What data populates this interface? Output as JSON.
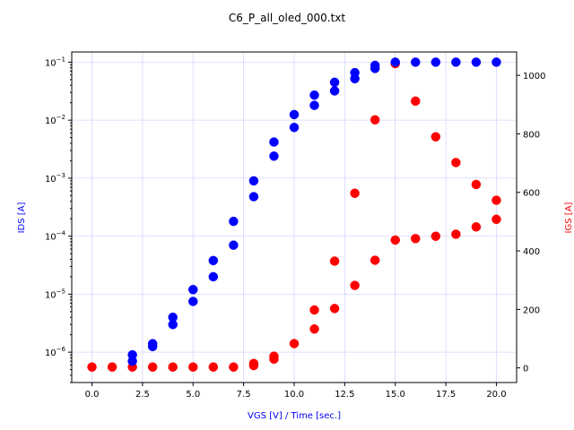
{
  "chart_data": {
    "type": "scatter",
    "title": "C6_P_all_oled_000.txt",
    "xlabel": "VGS [V] / Time [sec.]",
    "ylabel_left": "IDS [A]",
    "ylabel_right": "IGS [A]",
    "xlim": [
      -1,
      21
    ],
    "ylim_left": [
      3e-07,
      0.15
    ],
    "ylim_right": [
      -50,
      1080
    ],
    "yscale_left": "log",
    "yscale_right": "linear",
    "grid": true,
    "x_ticks": [
      "0.0",
      "2.5",
      "5.0",
      "7.5",
      "10.0",
      "12.5",
      "15.0",
      "17.5",
      "20.0"
    ],
    "x_tick_values": [
      0,
      2.5,
      5,
      7.5,
      10,
      12.5,
      15,
      17.5,
      20
    ],
    "y_left_ticks": [
      "10^-6",
      "10^-5",
      "10^-4",
      "10^-3",
      "10^-2",
      "10^-1"
    ],
    "y_left_tick_exponents": [
      -6,
      -5,
      -4,
      -3,
      -2,
      -1
    ],
    "y_right_ticks": [
      "0",
      "200",
      "400",
      "600",
      "800",
      "1000"
    ],
    "y_right_tick_values": [
      0,
      200,
      400,
      600,
      800,
      1000
    ],
    "series": [
      {
        "axis": "left",
        "color": "#0000ff",
        "x": [
          2,
          2,
          3,
          3,
          4,
          4,
          5,
          5,
          6,
          6,
          7,
          7,
          8,
          8,
          9,
          9,
          10,
          10,
          11,
          11,
          12,
          12,
          13,
          13,
          14,
          14,
          15,
          16,
          17,
          18,
          19,
          20
        ],
        "y": [
          9e-07,
          7e-07,
          1.4e-06,
          1.25e-06,
          4e-06,
          3e-06,
          1.2e-05,
          7.5e-06,
          3.8e-05,
          2e-05,
          0.00018,
          7e-05,
          0.0009,
          0.00048,
          0.0042,
          0.0024,
          0.0125,
          0.0075,
          0.027,
          0.018,
          0.045,
          0.032,
          0.066,
          0.052,
          0.088,
          0.078,
          0.1,
          0.1,
          0.1,
          0.1,
          0.1,
          0.1
        ]
      },
      {
        "axis": "right",
        "color": "#ff0000",
        "x": [
          0,
          1,
          2,
          3,
          4,
          5,
          6,
          7,
          8,
          8,
          9,
          9,
          10,
          11,
          11,
          12,
          12,
          13,
          13,
          14,
          14,
          15,
          15,
          16,
          16,
          17,
          17,
          18,
          18,
          19,
          19,
          20,
          20
        ],
        "y": [
          3,
          3,
          3,
          3,
          3,
          3,
          3,
          3,
          8,
          15,
          30,
          40,
          83,
          133,
          198,
          203,
          365,
          282,
          597,
          368,
          848,
          1040,
          437,
          912,
          442,
          790,
          450,
          702,
          457,
          627,
          482,
          573,
          508
        ]
      }
    ]
  }
}
